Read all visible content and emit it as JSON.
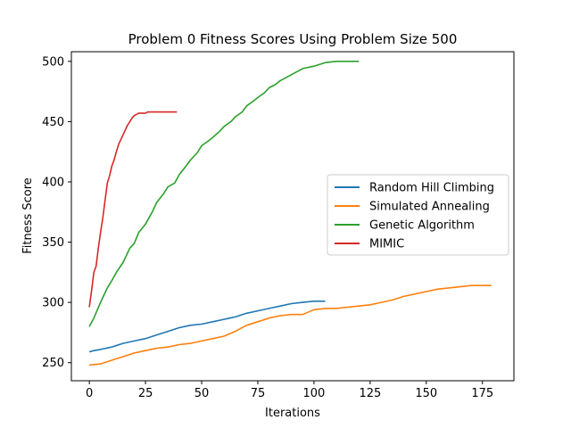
{
  "chart_data": {
    "type": "line",
    "title": "Problem 0 Fitness Scores Using Problem Size 500",
    "xlabel": "Iterations",
    "ylabel": "Fitness Score",
    "xlim": [
      -8,
      189
    ],
    "ylim": [
      235,
      508
    ],
    "xticks": [
      0,
      25,
      50,
      75,
      100,
      125,
      150,
      175
    ],
    "yticks": [
      250,
      300,
      350,
      400,
      450,
      500
    ],
    "grid": false,
    "legend_position": "center-right",
    "series": [
      {
        "name": "Random Hill Climbing",
        "color": "#1f77b4",
        "x": [
          0,
          2,
          5,
          10,
          15,
          20,
          25,
          30,
          35,
          40,
          45,
          50,
          55,
          60,
          65,
          70,
          75,
          80,
          85,
          90,
          95,
          100,
          105
        ],
        "y": [
          259,
          260,
          261,
          263,
          266,
          268,
          270,
          273,
          276,
          279,
          281,
          282,
          284,
          286,
          288,
          291,
          293,
          295,
          297,
          299,
          300,
          301,
          301
        ]
      },
      {
        "name": "Simulated Annealing",
        "color": "#ff7f0e",
        "x": [
          0,
          5,
          10,
          15,
          20,
          25,
          30,
          35,
          40,
          45,
          50,
          55,
          60,
          65,
          70,
          75,
          80,
          85,
          90,
          95,
          100,
          105,
          110,
          115,
          120,
          125,
          130,
          135,
          140,
          145,
          150,
          155,
          160,
          165,
          170,
          175,
          179
        ],
        "y": [
          248,
          249,
          252,
          255,
          258,
          260,
          262,
          263,
          265,
          266,
          268,
          270,
          272,
          276,
          281,
          284,
          287,
          289,
          290,
          290,
          294,
          295,
          295,
          296,
          297,
          298,
          300,
          302,
          305,
          307,
          309,
          311,
          312,
          313,
          314,
          314,
          314
        ]
      },
      {
        "name": "Genetic Algorithm",
        "color": "#2ca02c",
        "x": [
          0,
          2,
          5,
          8,
          10,
          12,
          15,
          18,
          20,
          22,
          25,
          28,
          30,
          33,
          35,
          38,
          40,
          43,
          45,
          48,
          50,
          53,
          55,
          58,
          60,
          63,
          65,
          68,
          70,
          73,
          75,
          78,
          80,
          83,
          85,
          88,
          90,
          95,
          100,
          105,
          110,
          115,
          120
        ],
        "y": [
          280,
          287,
          300,
          312,
          318,
          325,
          333,
          345,
          349,
          358,
          365,
          375,
          383,
          390,
          396,
          399,
          406,
          413,
          418,
          424,
          430,
          434,
          437,
          442,
          446,
          450,
          454,
          458,
          463,
          467,
          470,
          474,
          478,
          481,
          484,
          487,
          489,
          494,
          496,
          499,
          500,
          500,
          500
        ]
      },
      {
        "name": "MIMIC",
        "color": "#d62728",
        "x": [
          0,
          1,
          2,
          3,
          4,
          5,
          6,
          7,
          8,
          9,
          10,
          11,
          12,
          13,
          14,
          15,
          16,
          17,
          18,
          19,
          20,
          21,
          22,
          23,
          24,
          25,
          26,
          28,
          30,
          32,
          35,
          39
        ],
        "y": [
          296,
          310,
          325,
          330,
          345,
          358,
          370,
          385,
          399,
          405,
          413,
          418,
          425,
          431,
          435,
          439,
          443,
          447,
          450,
          453,
          455,
          456,
          457,
          457,
          457,
          457,
          458,
          458,
          458,
          458,
          458,
          458
        ]
      }
    ]
  }
}
